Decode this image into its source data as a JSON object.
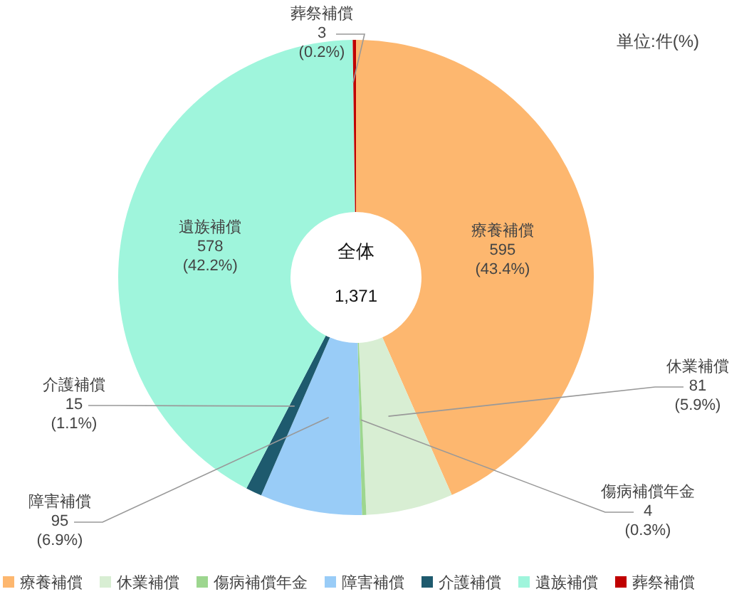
{
  "chart_data": {
    "type": "donut",
    "categories": [
      "療養補償",
      "休業補償",
      "傷病補償年金",
      "障害補償",
      "介護補償",
      "遺族補償",
      "葬祭補償"
    ],
    "values": [
      595,
      81,
      4,
      95,
      15,
      578,
      3
    ],
    "colors": [
      "#fdb76f",
      "#d8eed3",
      "#9dd68f",
      "#99ccf7",
      "#1e5a6e",
      "#9ff5dc",
      "#c00000"
    ],
    "value_labels": [
      "595\n(43.4%)",
      "81\n(5.9%)",
      "4\n(0.3%)",
      "95\n(6.9%)",
      "15\n(1.1%)",
      "578\n(42.2%)",
      "3\n(0.2%)"
    ],
    "annotations": [
      "単位:件(%)",
      "全体",
      "1,371"
    ],
    "legend": "bottom"
  }
}
